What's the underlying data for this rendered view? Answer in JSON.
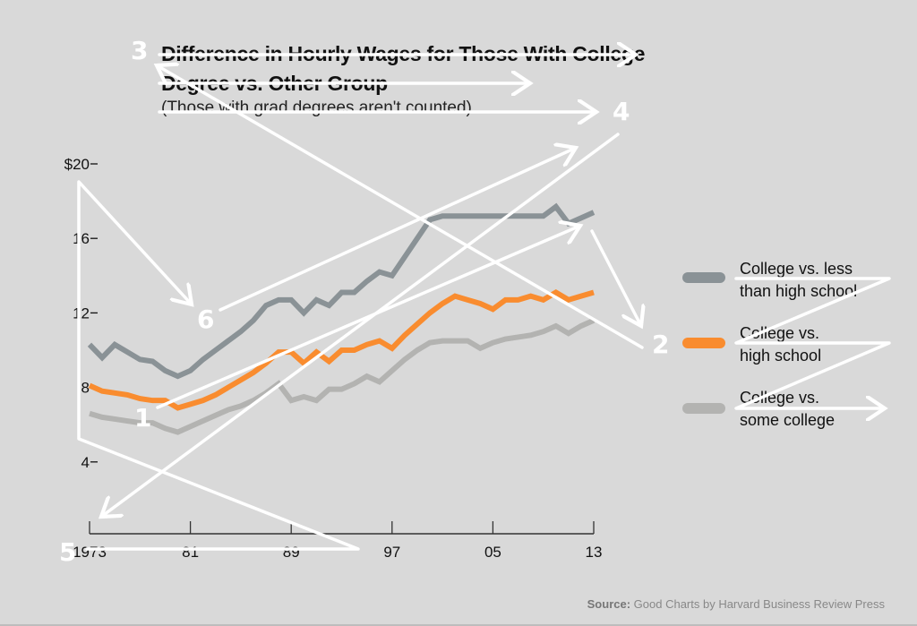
{
  "chart_data": {
    "type": "line",
    "title": "Difference in Hourly Wages for Those With College Degree vs. Other Group",
    "subtitle": "(Those with grad degrees aren't counted)",
    "xlabel": "",
    "ylabel": "",
    "ylim": [
      0,
      20
    ],
    "xlim": [
      1973,
      2013
    ],
    "grid": false,
    "legend_position": "right",
    "y_ticks": [
      20,
      16,
      12,
      8,
      4
    ],
    "y_tick_labels": [
      "$20",
      "16",
      "12",
      "8",
      "4"
    ],
    "x_ticks": [
      1973,
      1981,
      1989,
      1997,
      2005,
      2013
    ],
    "x_tick_labels": [
      "1973",
      "81",
      "89",
      "97",
      "05",
      "13"
    ],
    "x": [
      1973,
      1974,
      1975,
      1976,
      1977,
      1978,
      1979,
      1980,
      1981,
      1982,
      1983,
      1984,
      1985,
      1986,
      1987,
      1988,
      1989,
      1990,
      1991,
      1992,
      1993,
      1994,
      1995,
      1996,
      1997,
      1998,
      1999,
      2000,
      2001,
      2002,
      2003,
      2004,
      2005,
      2006,
      2007,
      2008,
      2009,
      2010,
      2011,
      2012,
      2013
    ],
    "series": [
      {
        "name": "College vs. less than high school",
        "color": "#8a9296",
        "values": [
          10.3,
          9.6,
          10.3,
          9.9,
          9.5,
          9.4,
          8.9,
          8.6,
          8.9,
          9.5,
          10.0,
          10.5,
          11.0,
          11.6,
          12.4,
          12.7,
          12.7,
          12.0,
          12.7,
          12.4,
          13.1,
          13.1,
          13.7,
          14.2,
          14.0,
          15.0,
          16.0,
          17.0,
          17.2,
          17.2,
          17.2,
          17.2,
          17.2,
          17.2,
          17.2,
          17.2,
          17.2,
          17.7,
          16.8,
          17.1,
          17.4
        ]
      },
      {
        "name": "College vs. high school",
        "color": "#f98c2f",
        "values": [
          8.1,
          7.8,
          7.7,
          7.6,
          7.4,
          7.3,
          7.3,
          6.9,
          7.1,
          7.3,
          7.6,
          8.0,
          8.4,
          8.8,
          9.3,
          9.9,
          9.9,
          9.3,
          9.9,
          9.4,
          10.0,
          10.0,
          10.3,
          10.5,
          10.1,
          10.8,
          11.4,
          12.0,
          12.5,
          12.9,
          12.7,
          12.5,
          12.2,
          12.7,
          12.7,
          12.9,
          12.7,
          13.1,
          12.7,
          12.9,
          13.1
        ]
      },
      {
        "name": "College vs. some college",
        "color": "#b3b3b1",
        "values": [
          6.6,
          6.4,
          6.3,
          6.2,
          6.1,
          6.1,
          5.8,
          5.6,
          5.9,
          6.2,
          6.5,
          6.8,
          7.0,
          7.3,
          7.7,
          8.2,
          7.3,
          7.5,
          7.3,
          7.9,
          7.9,
          8.2,
          8.6,
          8.3,
          8.9,
          9.5,
          10.0,
          10.4,
          10.5,
          10.5,
          10.5,
          10.1,
          10.4,
          10.6,
          10.7,
          10.8,
          11.0,
          11.3,
          10.9,
          11.3,
          11.6
        ]
      }
    ]
  },
  "legend": [
    {
      "line1": "College vs. less",
      "line2": "than high school"
    },
    {
      "line1": "College vs.",
      "line2": "high school"
    },
    {
      "line1": "College vs.",
      "line2": "some college"
    }
  ],
  "annotations": {
    "n1": "1",
    "n2": "2",
    "n3": "3",
    "n4": "4",
    "n5": "5",
    "n6": "6"
  },
  "source": {
    "label": "Source:",
    "text": " Good Charts by Harvard Business Review Press"
  }
}
